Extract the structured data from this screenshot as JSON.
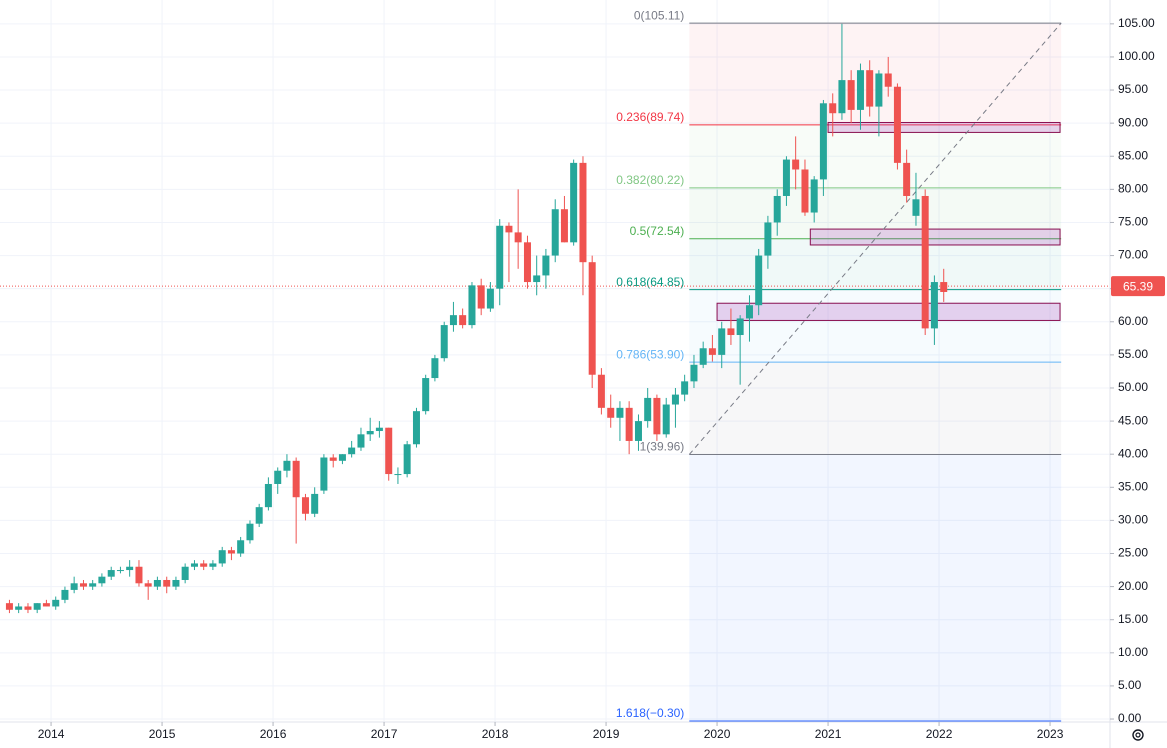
{
  "chart_data": {
    "type": "candlestick",
    "up_color": "#26a69a",
    "down_color": "#ef5350",
    "grid": true,
    "xlim": [
      2013.54,
      2023.54
    ],
    "xticks": [
      2014,
      2015,
      2016,
      2017,
      2018,
      2019,
      2020,
      2021,
      2022,
      2023
    ],
    "ylim": [
      -0.45,
      108.6
    ],
    "yticks": [
      {
        "value": 0,
        "label": "0.00"
      },
      {
        "value": 5,
        "label": "5.00"
      },
      {
        "value": 10,
        "label": "10.00"
      },
      {
        "value": 15,
        "label": "15.00"
      },
      {
        "value": 20,
        "label": "20.00"
      },
      {
        "value": 25,
        "label": "25.00"
      },
      {
        "value": 30,
        "label": "30.00"
      },
      {
        "value": 35,
        "label": "35.00"
      },
      {
        "value": 40,
        "label": "40.00"
      },
      {
        "value": 45,
        "label": "45.00"
      },
      {
        "value": 50,
        "label": "50.00"
      },
      {
        "value": 55,
        "label": "55.00"
      },
      {
        "value": 60,
        "label": "60.00"
      },
      {
        "value": 65,
        "label": "65.00"
      },
      {
        "value": 70,
        "label": "70.00"
      },
      {
        "value": 75,
        "label": "75.00"
      },
      {
        "value": 80,
        "label": "80.00"
      },
      {
        "value": 85,
        "label": "85.00"
      },
      {
        "value": 90,
        "label": "90.00"
      },
      {
        "value": 95,
        "label": "95.00"
      },
      {
        "value": 100,
        "label": "100.00"
      },
      {
        "value": 105,
        "label": "105.00"
      }
    ],
    "x": [
      2013.625,
      2013.708,
      2013.792,
      2013.875,
      2013.958,
      2014.042,
      2014.125,
      2014.208,
      2014.292,
      2014.375,
      2014.458,
      2014.542,
      2014.625,
      2014.708,
      2014.792,
      2014.875,
      2014.958,
      2015.042,
      2015.125,
      2015.208,
      2015.292,
      2015.375,
      2015.458,
      2015.542,
      2015.625,
      2015.708,
      2015.792,
      2015.875,
      2015.958,
      2016.042,
      2016.125,
      2016.208,
      2016.292,
      2016.375,
      2016.458,
      2016.542,
      2016.625,
      2016.708,
      2016.792,
      2016.875,
      2016.958,
      2017.042,
      2017.125,
      2017.208,
      2017.292,
      2017.375,
      2017.458,
      2017.542,
      2017.625,
      2017.708,
      2017.792,
      2017.875,
      2017.958,
      2018.042,
      2018.125,
      2018.208,
      2018.292,
      2018.375,
      2018.458,
      2018.542,
      2018.625,
      2018.708,
      2018.792,
      2018.875,
      2018.958,
      2019.042,
      2019.125,
      2019.208,
      2019.292,
      2019.375,
      2019.458,
      2019.542,
      2019.625,
      2019.708,
      2019.792,
      2019.875,
      2019.958,
      2020.042,
      2020.125,
      2020.208,
      2020.292,
      2020.375,
      2020.458,
      2020.542,
      2020.625,
      2020.708,
      2020.792,
      2020.875,
      2020.958,
      2021.042,
      2021.125,
      2021.208,
      2021.292,
      2021.375,
      2021.458,
      2021.542,
      2021.625,
      2021.708,
      2021.792,
      2021.875,
      2021.958,
      2022.042
    ],
    "open": [
      17.5,
      16.5,
      17,
      16.5,
      17.5,
      17,
      18,
      19.5,
      20.5,
      20,
      20.5,
      21.5,
      22.5,
      22.5,
      23,
      20.5,
      20,
      21,
      20,
      21,
      23,
      23.5,
      23,
      23.5,
      25.5,
      25,
      27,
      29.5,
      32,
      35.5,
      37.5,
      39,
      33.5,
      31,
      34.5,
      39.5,
      39,
      40,
      41,
      43,
      43.5,
      44,
      37,
      37,
      41.5,
      46.5,
      51.5,
      54.5,
      59.5,
      61,
      59.5,
      65.5,
      62,
      65,
      74.5,
      73.5,
      72,
      66,
      67,
      70,
      77,
      72,
      84,
      69,
      52,
      47,
      45.5,
      47,
      42,
      45,
      48.5,
      43,
      47.5,
      49,
      51,
      53.5,
      56,
      55,
      59,
      58,
      60.5,
      62.5,
      70,
      75,
      79,
      84.5,
      83,
      76.5,
      81.5,
      93,
      91.5,
      96.5,
      92,
      98,
      92.5,
      97.5,
      95.5,
      84,
      76,
      79,
      59,
      66
    ],
    "high": [
      18,
      17.5,
      17.5,
      17.5,
      18,
      18.5,
      20,
      21.5,
      21,
      21,
      22,
      23,
      23,
      24,
      24,
      21,
      21.5,
      21.5,
      21.5,
      23.5,
      24,
      24,
      24,
      26,
      26,
      27.5,
      30,
      32.5,
      36.5,
      38,
      40,
      39.5,
      34,
      35,
      40,
      40,
      40,
      42,
      44,
      45.5,
      45,
      44,
      38,
      42,
      47,
      52,
      55,
      60,
      63,
      62,
      66,
      66.5,
      66,
      75.5,
      75,
      80,
      73,
      70,
      71,
      78.5,
      79,
      84.5,
      85,
      70,
      53,
      49,
      48,
      48,
      46,
      50,
      49,
      48.5,
      50,
      52,
      55,
      57,
      58,
      60,
      62,
      61,
      64,
      71,
      76,
      80,
      85,
      88,
      84.5,
      82,
      93.5,
      94.5,
      105,
      98,
      99,
      99.5,
      98,
      100,
      96,
      86,
      82.5,
      80,
      67,
      68
    ],
    "low": [
      16,
      16,
      16,
      16,
      17,
      16.5,
      17.5,
      19,
      19.5,
      19.5,
      20,
      21,
      22,
      21.5,
      20,
      18,
      19.5,
      19,
      19.5,
      20.5,
      22.5,
      22.5,
      22.5,
      23,
      24,
      24.5,
      26.5,
      29,
      31.5,
      34,
      36.5,
      26.5,
      30,
      30.5,
      34,
      38,
      38.5,
      39.5,
      40.5,
      42,
      42.5,
      36,
      35.5,
      36.5,
      41,
      46,
      51,
      54,
      58.5,
      59,
      59,
      61,
      61.5,
      62.5,
      66,
      68,
      65,
      64,
      65,
      69,
      72,
      71.5,
      64,
      50,
      46,
      44,
      42,
      40,
      40.5,
      44,
      42,
      42.5,
      44,
      48,
      50,
      53,
      54,
      53,
      56.5,
      50.5,
      57,
      61,
      68,
      73,
      77.5,
      80,
      76,
      75,
      79,
      88,
      90.5,
      90,
      89,
      91,
      88,
      94,
      83,
      78,
      74.5,
      58,
      56.5,
      63
    ],
    "close": [
      16.5,
      17,
      16.5,
      17.5,
      17,
      18,
      19.5,
      20.5,
      20,
      20.5,
      21.5,
      22.5,
      22.5,
      23,
      20.5,
      20,
      21,
      20,
      21,
      23,
      23.5,
      23,
      23.5,
      25.5,
      25,
      27,
      29.5,
      32,
      35.5,
      37.5,
      39,
      33.5,
      31,
      34,
      39.5,
      39,
      40,
      41,
      43,
      43.5,
      44,
      37,
      37,
      41.5,
      46.5,
      51.5,
      54.5,
      59.5,
      61,
      59.5,
      65.5,
      62,
      65,
      74.5,
      73.5,
      72,
      66,
      67,
      70,
      77,
      72,
      84,
      69,
      52,
      47,
      45.5,
      47,
      42,
      45,
      48.5,
      43,
      47.5,
      49,
      51,
      53.5,
      56,
      55,
      59,
      58,
      60.5,
      62.5,
      70,
      75,
      79,
      84.5,
      83,
      76.5,
      81.5,
      93,
      91.5,
      96.5,
      92,
      98,
      92.5,
      97.5,
      95.5,
      84,
      79,
      78.5,
      59,
      66,
      64.5
    ],
    "last_price": 65.39,
    "fib": {
      "x": [
        2019.75,
        2023.1
      ],
      "levels": [
        {
          "label": "0(105.11)",
          "value": 105.11,
          "color": "#787b86"
        },
        {
          "label": "0.236(89.74)",
          "value": 89.74,
          "color": "#f23645"
        },
        {
          "label": "0.382(80.22)",
          "value": 80.22,
          "color": "#81c784"
        },
        {
          "label": "0.5(72.54)",
          "value": 72.54,
          "color": "#4caf50"
        },
        {
          "label": "0.618(64.85)",
          "value": 64.85,
          "color": "#089981"
        },
        {
          "label": "0.786(53.90)",
          "value": 53.9,
          "color": "#64b5f6"
        },
        {
          "label": "1(39.96)",
          "value": 39.96,
          "color": "#787b86"
        },
        {
          "label": "1.618(−0.30)",
          "value": -0.3,
          "color": "#2962ff"
        }
      ]
    },
    "trend_line": {
      "x": [
        2019.75,
        2023.1
      ],
      "y": [
        39.96,
        105.11
      ]
    },
    "zones": [
      {
        "x": [
          2021.0,
          2023.09
        ],
        "y": [
          88.6,
          90.1
        ]
      },
      {
        "x": [
          2020.84,
          2023.09
        ],
        "y": [
          71.6,
          74.0
        ]
      },
      {
        "x": [
          2020.0,
          2023.09
        ],
        "y": [
          60.2,
          62.8
        ]
      }
    ]
  }
}
